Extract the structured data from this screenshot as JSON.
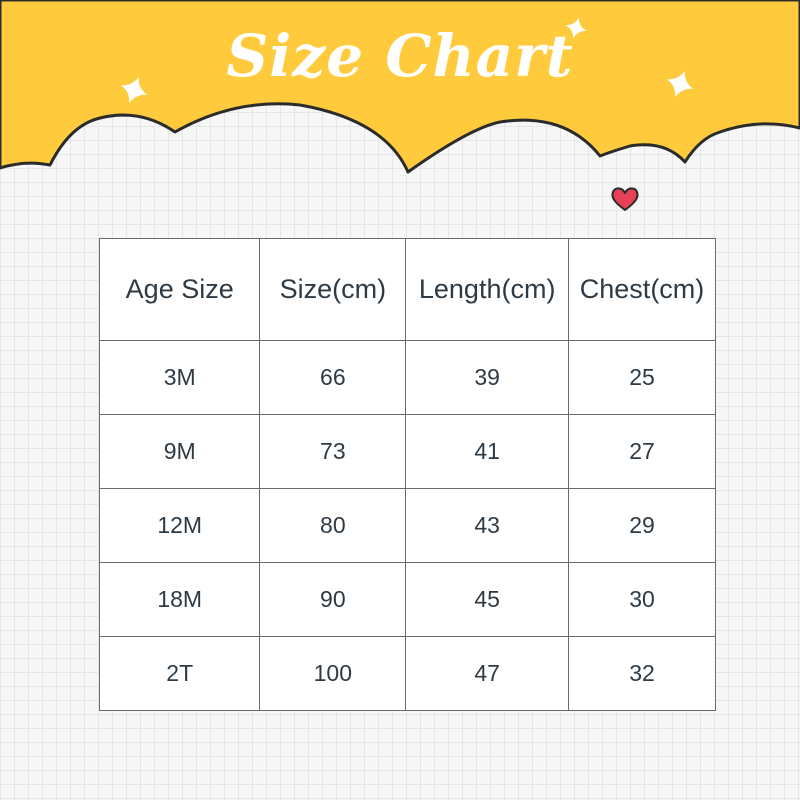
{
  "title": "Size Chart",
  "colors": {
    "banner": "#ffcb3d",
    "outline": "#2b2b2b",
    "heart": "#e84057",
    "text": "#2e3a44"
  },
  "icons": [
    "sparkle-icon",
    "sparkle-icon",
    "sparkle-icon",
    "heart-icon"
  ],
  "table": {
    "headers": [
      "Age Size",
      "Size(cm)",
      "Length(cm)",
      "Chest(cm)"
    ],
    "rows": [
      [
        "3M",
        "66",
        "39",
        "25"
      ],
      [
        "9M",
        "73",
        "41",
        "27"
      ],
      [
        "12M",
        "80",
        "43",
        "29"
      ],
      [
        "18M",
        "90",
        "45",
        "30"
      ],
      [
        "2T",
        "100",
        "47",
        "32"
      ]
    ]
  }
}
